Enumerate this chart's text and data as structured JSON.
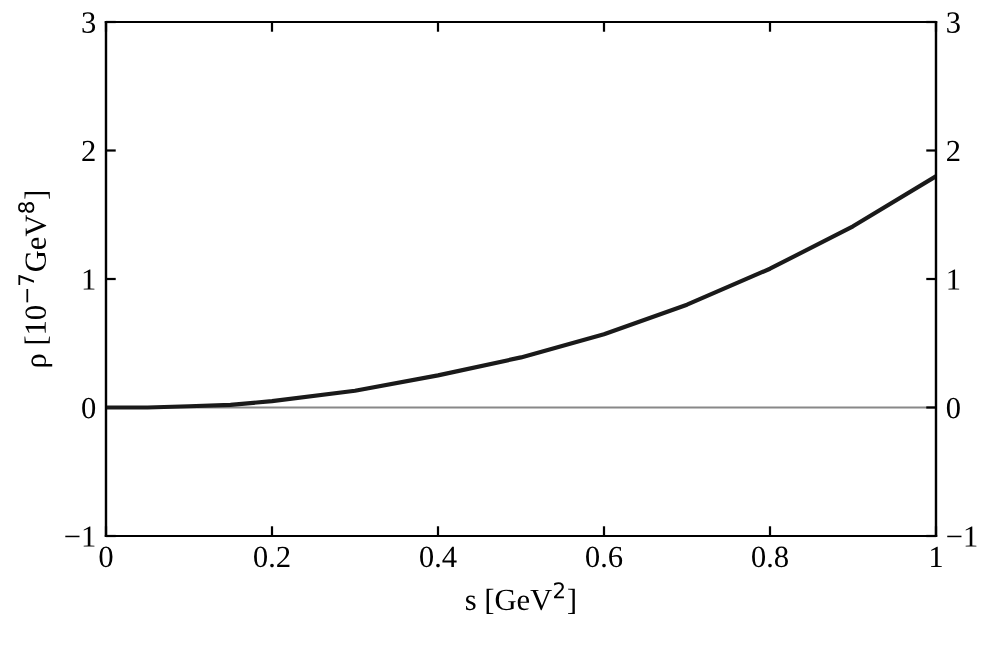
{
  "chart_data": {
    "type": "line",
    "xlabel": "s [GeV$^{2}$]",
    "ylabel": "ρ [10$^{−7}$GeV$^{8}$]",
    "x": [
      0,
      0.05,
      0.1,
      0.15,
      0.2,
      0.3,
      0.4,
      0.5,
      0.6,
      0.7,
      0.8,
      0.9,
      1.0
    ],
    "series": [
      {
        "color": "#1a1a1a",
        "values": [
          0,
          0.0,
          0.01,
          0.02,
          0.05,
          0.13,
          0.25,
          0.39,
          0.57,
          0.8,
          1.08,
          1.41,
          1.8
        ]
      }
    ],
    "xlim": [
      0,
      1
    ],
    "xticks": [
      0,
      0.2,
      0.4,
      0.6,
      0.8,
      1
    ],
    "ylim": [
      -1,
      3
    ],
    "yticks": [
      -1,
      0,
      1,
      2,
      3
    ],
    "y2lim": [
      -1,
      3
    ],
    "y2ticks": [
      -1,
      0,
      1,
      2,
      3
    ],
    "ref_lines": [
      {
        "axis": "y",
        "value": 0,
        "color": "#888888"
      }
    ],
    "grid": false,
    "legend": false,
    "marker": "none",
    "line_style": "solid"
  }
}
